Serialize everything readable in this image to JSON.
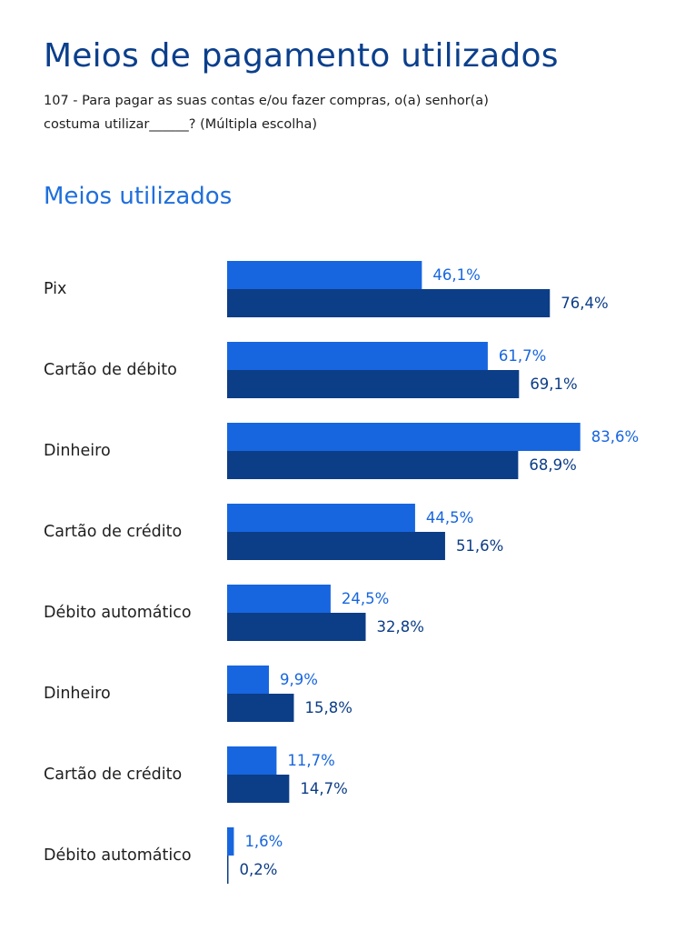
{
  "header": {
    "title": "Meios de pagamento utilizados",
    "question": "107 - Para pagar as suas contas e/ou fazer compras, o(a) senhor(a) costuma utilizar______? (Múltipla escolha)"
  },
  "section": {
    "title": "Meios utilizados"
  },
  "colors": {
    "title": "#0b3f8c",
    "section_title": "#1f6fdc",
    "series_a": "#1766e0",
    "series_b": "#0c3d87",
    "category_text": "#1e1e1e"
  },
  "chart_data": {
    "type": "bar",
    "orientation": "horizontal",
    "categories": [
      "Pix",
      "Cartão de débito",
      "Dinheiro",
      "Cartão de crédito",
      "Débito automático",
      "Dinheiro",
      "Cartão de crédito",
      "Débito automático"
    ],
    "series": [
      {
        "values": [
          46.1,
          61.7,
          83.6,
          44.5,
          24.5,
          9.9,
          11.7,
          1.6
        ],
        "labels": [
          "46,1%",
          "61,7%",
          "83,6%",
          "44,5%",
          "24,5%",
          "9,9%",
          "11,7%",
          "1,6%"
        ]
      },
      {
        "values": [
          76.4,
          69.1,
          68.9,
          51.6,
          32.8,
          15.8,
          14.7,
          0.2
        ],
        "labels": [
          "76,4%",
          "69,1%",
          "68,9%",
          "51,6%",
          "32,8%",
          "15,8%",
          "14,7%",
          "0,2%"
        ]
      }
    ],
    "xlim": [
      0,
      100
    ],
    "grid": false,
    "legend": false
  }
}
